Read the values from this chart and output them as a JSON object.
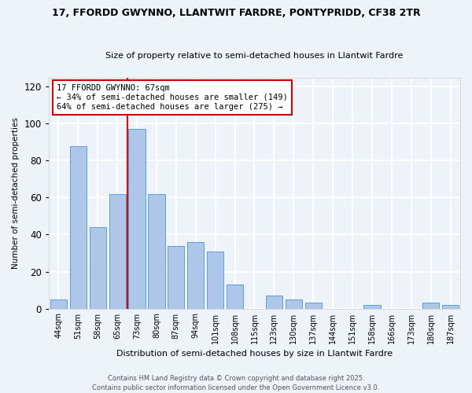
{
  "title1": "17, FFORDD GWYNNO, LLANTWIT FARDRE, PONTYPRIDD, CF38 2TR",
  "title2": "Size of property relative to semi-detached houses in Llantwit Fardre",
  "xlabel": "Distribution of semi-detached houses by size in Llantwit Fardre",
  "ylabel": "Number of semi-detached properties",
  "categories": [
    "44sqm",
    "51sqm",
    "58sqm",
    "65sqm",
    "73sqm",
    "80sqm",
    "87sqm",
    "94sqm",
    "101sqm",
    "108sqm",
    "115sqm",
    "123sqm",
    "130sqm",
    "137sqm",
    "144sqm",
    "151sqm",
    "158sqm",
    "166sqm",
    "173sqm",
    "180sqm",
    "187sqm"
  ],
  "values": [
    5,
    88,
    44,
    62,
    97,
    62,
    34,
    36,
    31,
    13,
    0,
    7,
    5,
    3,
    0,
    0,
    2,
    0,
    0,
    3,
    2
  ],
  "bar_color": "#aec6e8",
  "bar_edge_color": "#5a9fd4",
  "annotation_title": "17 FFORDD GWYNNO: 67sqm",
  "annotation_line1": "← 34% of semi-detached houses are smaller (149)",
  "annotation_line2": "64% of semi-detached houses are larger (275) →",
  "annotation_box_color": "#ffffff",
  "annotation_box_edge": "#cc0000",
  "vline_color": "#cc0000",
  "ylim": [
    0,
    125
  ],
  "yticks": [
    0,
    20,
    40,
    60,
    80,
    100,
    120
  ],
  "background_color": "#eef2f9",
  "grid_color": "#ffffff",
  "footer1": "Contains HM Land Registry data © Crown copyright and database right 2025.",
  "footer2": "Contains public sector information licensed under the Open Government Licence v3.0."
}
